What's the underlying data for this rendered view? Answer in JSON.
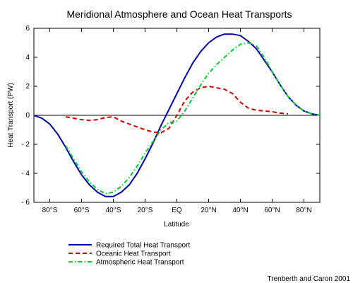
{
  "chart_data": {
    "type": "line",
    "title": "Meridional Atmosphere and Ocean Heat Transports",
    "xlabel": "Latitude",
    "ylabel": "Heat Transport (PW)",
    "xlim": [
      -90,
      90
    ],
    "ylim": [
      -6,
      6
    ],
    "x_ticks": [
      {
        "value": -80,
        "label": "80°S"
      },
      {
        "value": -60,
        "label": "60°S"
      },
      {
        "value": -40,
        "label": "40°S"
      },
      {
        "value": -20,
        "label": "20°S"
      },
      {
        "value": 0,
        "label": "EQ"
      },
      {
        "value": 20,
        "label": "20°N"
      },
      {
        "value": 40,
        "label": "40°N"
      },
      {
        "value": 60,
        "label": "60°N"
      },
      {
        "value": 80,
        "label": "80°N"
      }
    ],
    "y_ticks": [
      {
        "value": 6,
        "label": "6"
      },
      {
        "value": 4,
        "label": "4"
      },
      {
        "value": 2,
        "label": "2"
      },
      {
        "value": 0,
        "label": "0"
      },
      {
        "value": -2,
        "label": "- 2"
      },
      {
        "value": -4,
        "label": "- 4"
      },
      {
        "value": -6,
        "label": "- 6"
      }
    ],
    "grid": false,
    "legend_position": "bottom-left",
    "series": [
      {
        "name": "Required Total Heat Transport",
        "color": "#0000a8",
        "style": "solid",
        "x": [
          -90,
          -85,
          -80,
          -75,
          -70,
          -65,
          -60,
          -55,
          -50,
          -45,
          -40,
          -35,
          -30,
          -25,
          -20,
          -15,
          -10,
          -5,
          0,
          5,
          10,
          15,
          20,
          25,
          30,
          35,
          40,
          45,
          50,
          55,
          60,
          65,
          70,
          75,
          80,
          85,
          90
        ],
        "y": [
          0,
          -0.2,
          -0.6,
          -1.3,
          -2.2,
          -3.2,
          -4.1,
          -4.8,
          -5.3,
          -5.6,
          -5.6,
          -5.3,
          -4.8,
          -4.0,
          -3.0,
          -1.9,
          -0.7,
          0.4,
          1.5,
          2.6,
          3.6,
          4.4,
          5.0,
          5.4,
          5.6,
          5.6,
          5.5,
          5.1,
          4.6,
          3.8,
          3.0,
          2.1,
          1.3,
          0.7,
          0.3,
          0.1,
          0
        ]
      },
      {
        "name": "Oceanic Heat Transport",
        "color": "#cc0000",
        "style": "dashed",
        "x": [
          -70,
          -65,
          -60,
          -55,
          -50,
          -45,
          -40,
          -35,
          -30,
          -25,
          -20,
          -15,
          -10,
          -5,
          0,
          5,
          10,
          15,
          20,
          25,
          30,
          35,
          40,
          45,
          50,
          55,
          60,
          65,
          70
        ],
        "y": [
          -0.1,
          -0.2,
          -0.3,
          -0.35,
          -0.3,
          -0.15,
          -0.1,
          -0.4,
          -0.6,
          -0.8,
          -1.0,
          -1.15,
          -1.2,
          -0.9,
          0,
          1.0,
          1.6,
          1.9,
          2.0,
          1.9,
          1.8,
          1.5,
          0.9,
          0.5,
          0.35,
          0.3,
          0.25,
          0.15,
          0.1
        ]
      },
      {
        "name": "Atmospheric Heat Transport",
        "color": "#00cc33",
        "style": "dashdot",
        "x": [
          -70,
          -65,
          -60,
          -55,
          -50,
          -45,
          -40,
          -35,
          -30,
          -25,
          -20,
          -15,
          -10,
          -5,
          0,
          5,
          10,
          15,
          20,
          25,
          30,
          35,
          40,
          45,
          50,
          55,
          60,
          65,
          70,
          75,
          80,
          85,
          90
        ],
        "y": [
          -2.1,
          -3.0,
          -3.9,
          -4.6,
          -5.1,
          -5.4,
          -5.3,
          -4.9,
          -4.3,
          -3.5,
          -2.6,
          -1.8,
          -1.0,
          -0.5,
          -0.4,
          0.3,
          1.2,
          2.1,
          2.9,
          3.5,
          4.0,
          4.5,
          4.9,
          5.0,
          4.8,
          4.0,
          3.0,
          2.1,
          1.3,
          0.7,
          0.3,
          0.1,
          0
        ]
      }
    ]
  },
  "credit": "Trenberth and Caron 2001"
}
